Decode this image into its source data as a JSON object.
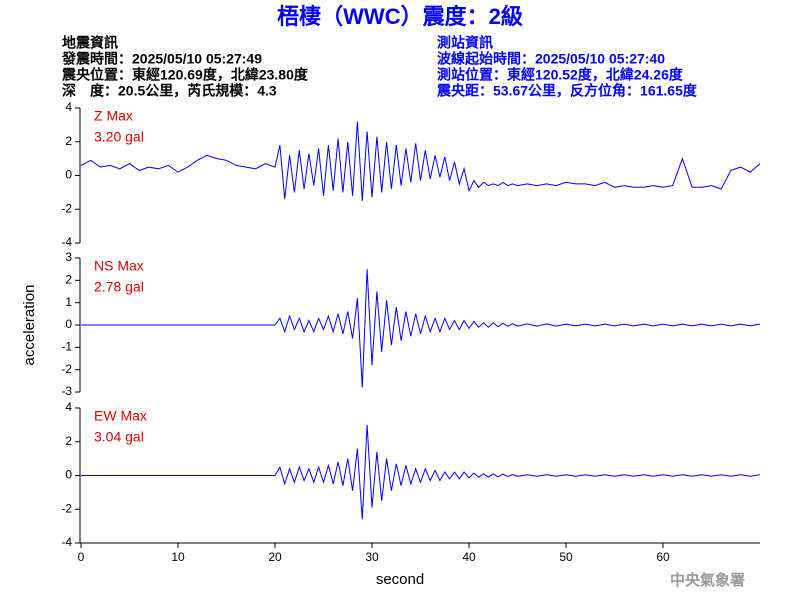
{
  "title": "梧棲（WWC）震度：2級",
  "info_left": [
    "地震資訊",
    "發震時間：2025/05/10 05:27:49",
    "震央位置：東經120.69度，北緯23.80度",
    "深　度：20.5公里，芮氏規模：4.3"
  ],
  "info_right": [
    "測站資訊",
    "波線起始時間：2025/05/10 05:27:40",
    "測站位置：東經120.52度，北緯24.26度",
    "震央距：53.67公里，反方位角：161.65度"
  ],
  "ylabel": "acceleration",
  "xlabel": "second",
  "footer": "中央氣象署",
  "chart_data": [
    {
      "type": "line",
      "label": "Z Max",
      "max_label": "3.20 gal",
      "color": "#0000ff",
      "label_color": "#e00000",
      "xlim": [
        0,
        70
      ],
      "ylim": [
        -4,
        4
      ],
      "yticks": [
        -4,
        -2,
        0,
        2,
        4
      ],
      "x": [
        0,
        1,
        2,
        3,
        4,
        5,
        6,
        7,
        8,
        9,
        10,
        11,
        12,
        13,
        14,
        15,
        16,
        17,
        18,
        19,
        20,
        20.5,
        21,
        21.5,
        22,
        22.5,
        23,
        23.5,
        24,
        24.5,
        25,
        25.5,
        26,
        26.5,
        27,
        27.5,
        28,
        28.5,
        29,
        29.5,
        30,
        30.5,
        31,
        31.5,
        32,
        32.5,
        33,
        33.5,
        34,
        34.5,
        35,
        35.5,
        36,
        36.5,
        37,
        37.5,
        38,
        38.5,
        39,
        39.5,
        40,
        40.5,
        41,
        41.5,
        42,
        42.5,
        43,
        43.5,
        44,
        44.5,
        45,
        46,
        47,
        48,
        49,
        50,
        51,
        52,
        53,
        54,
        55,
        56,
        57,
        58,
        59,
        60,
        61,
        62,
        63,
        64,
        65,
        66,
        67,
        68,
        69,
        70
      ],
      "values": [
        0.6,
        0.9,
        0.5,
        0.6,
        0.4,
        0.7,
        0.3,
        0.5,
        0.4,
        0.6,
        0.2,
        0.5,
        0.9,
        1.2,
        1.0,
        0.9,
        0.6,
        0.5,
        0.4,
        0.7,
        0.5,
        1.8,
        -1.4,
        1.2,
        -1.0,
        1.5,
        -0.8,
        1.3,
        -0.6,
        1.6,
        -1.2,
        1.8,
        -0.9,
        2.2,
        -1.0,
        2.0,
        -1.2,
        3.2,
        -1.5,
        2.6,
        -1.3,
        2.3,
        -1.0,
        2.0,
        -0.8,
        1.8,
        -0.6,
        1.6,
        -0.4,
        1.9,
        -0.3,
        1.5,
        -0.2,
        1.2,
        -0.1,
        1.1,
        -0.3,
        0.8,
        -0.5,
        0.4,
        -0.9,
        -0.3,
        -0.7,
        -0.4,
        -0.6,
        -0.5,
        -0.6,
        -0.4,
        -0.6,
        -0.5,
        -0.6,
        -0.5,
        -0.6,
        -0.5,
        -0.6,
        -0.4,
        -0.5,
        -0.5,
        -0.6,
        -0.4,
        -0.7,
        -0.6,
        -0.7,
        -0.7,
        -0.6,
        -0.7,
        -0.6,
        1.0,
        -0.7,
        -0.7,
        -0.6,
        -0.8,
        0.3,
        0.5,
        0.2,
        0.7
      ]
    },
    {
      "type": "line",
      "label": "NS Max",
      "max_label": "2.78 gal",
      "color": "#0000ff",
      "label_color": "#e00000",
      "xlim": [
        0,
        70
      ],
      "ylim": [
        -3,
        3
      ],
      "yticks": [
        -3,
        -2,
        -1,
        0,
        1,
        2,
        3
      ],
      "x": [
        0,
        1,
        2,
        3,
        4,
        5,
        6,
        7,
        8,
        9,
        10,
        11,
        12,
        13,
        14,
        15,
        16,
        17,
        18,
        19,
        20,
        20.5,
        21,
        21.5,
        22,
        22.5,
        23,
        23.5,
        24,
        24.5,
        25,
        25.5,
        26,
        26.5,
        27,
        27.5,
        28,
        28.5,
        29,
        29.5,
        30,
        30.5,
        31,
        31.5,
        32,
        32.5,
        33,
        33.5,
        34,
        34.5,
        35,
        35.5,
        36,
        36.5,
        37,
        37.5,
        38,
        38.5,
        39,
        39.5,
        40,
        40.5,
        41,
        41.5,
        42,
        42.5,
        43,
        43.5,
        44,
        44.5,
        45,
        46,
        47,
        48,
        49,
        50,
        51,
        52,
        53,
        54,
        55,
        56,
        57,
        58,
        59,
        60,
        61,
        62,
        63,
        64,
        65,
        66,
        67,
        68,
        69,
        70
      ],
      "values": [
        0,
        0,
        0,
        0,
        0,
        0,
        0,
        0,
        0,
        0,
        0,
        0,
        0,
        0,
        0,
        0,
        0,
        0,
        0,
        0,
        0,
        0.3,
        -0.3,
        0.4,
        -0.2,
        0.3,
        -0.3,
        0.2,
        -0.3,
        0.3,
        -0.2,
        0.4,
        -0.3,
        0.5,
        -0.4,
        0.6,
        -0.6,
        1.2,
        -2.8,
        2.5,
        -1.8,
        1.5,
        -1.2,
        1.1,
        -0.9,
        0.8,
        -0.7,
        0.6,
        -0.5,
        0.5,
        -0.4,
        0.4,
        -0.3,
        0.3,
        -0.3,
        0.3,
        -0.2,
        0.2,
        -0.2,
        0.2,
        -0.15,
        0.15,
        -0.1,
        0.1,
        -0.1,
        0.1,
        -0.08,
        0.08,
        -0.06,
        0.06,
        -0.05,
        0.05,
        -0.05,
        0.05,
        -0.05,
        0.04,
        -0.04,
        0.04,
        -0.04,
        0.04,
        -0.04,
        0.04,
        -0.04,
        0.04,
        -0.04,
        0.04,
        -0.04,
        0.04,
        -0.04,
        0.04,
        -0.04,
        0.04,
        -0.04,
        0.04,
        -0.04,
        0.04
      ]
    },
    {
      "type": "line",
      "label": "EW Max",
      "max_label": "3.04 gal",
      "color": "#0000ff",
      "label_color": "#e00000",
      "xlim": [
        0,
        70
      ],
      "ylim": [
        -4,
        4
      ],
      "yticks": [
        -4,
        -2,
        0,
        2,
        4
      ],
      "xticks": [
        0,
        10,
        20,
        30,
        40,
        50,
        60
      ],
      "x": [
        0,
        1,
        2,
        3,
        4,
        5,
        6,
        7,
        8,
        9,
        10,
        11,
        12,
        13,
        14,
        15,
        16,
        17,
        18,
        19,
        20,
        20.5,
        21,
        21.5,
        22,
        22.5,
        23,
        23.5,
        24,
        24.5,
        25,
        25.5,
        26,
        26.5,
        27,
        27.5,
        28,
        28.5,
        29,
        29.5,
        30,
        30.5,
        31,
        31.5,
        32,
        32.5,
        33,
        33.5,
        34,
        34.5,
        35,
        35.5,
        36,
        36.5,
        37,
        37.5,
        38,
        38.5,
        39,
        39.5,
        40,
        40.5,
        41,
        41.5,
        42,
        42.5,
        43,
        43.5,
        44,
        44.5,
        45,
        46,
        47,
        48,
        49,
        50,
        51,
        52,
        53,
        54,
        55,
        56,
        57,
        58,
        59,
        60,
        61,
        62,
        63,
        64,
        65,
        66,
        67,
        68,
        69,
        70
      ],
      "values": [
        0,
        0,
        0,
        0,
        0,
        0,
        0,
        0,
        0,
        0,
        0,
        0,
        0,
        0,
        0,
        0,
        0,
        0,
        0,
        0,
        0,
        0.5,
        -0.5,
        0.4,
        -0.4,
        0.5,
        -0.3,
        0.4,
        -0.4,
        0.5,
        -0.4,
        0.6,
        -0.5,
        0.8,
        -0.6,
        1.0,
        -0.9,
        1.6,
        -2.6,
        3.0,
        -1.9,
        1.4,
        -1.5,
        1.0,
        -0.9,
        0.7,
        -0.6,
        0.6,
        -0.5,
        0.4,
        -0.4,
        0.4,
        -0.3,
        0.3,
        -0.3,
        0.2,
        -0.2,
        0.2,
        -0.2,
        0.2,
        -0.15,
        0.15,
        -0.1,
        0.1,
        -0.1,
        0.1,
        -0.08,
        0.08,
        -0.06,
        0.06,
        -0.05,
        0.05,
        -0.05,
        0.05,
        -0.05,
        0.04,
        -0.04,
        0.04,
        -0.04,
        0.04,
        -0.04,
        0.04,
        -0.04,
        0.04,
        -0.04,
        0.04,
        -0.04,
        0.04,
        -0.04,
        0.04,
        -0.04,
        0.04,
        -0.04,
        0.04,
        -0.04,
        0.04
      ]
    }
  ]
}
